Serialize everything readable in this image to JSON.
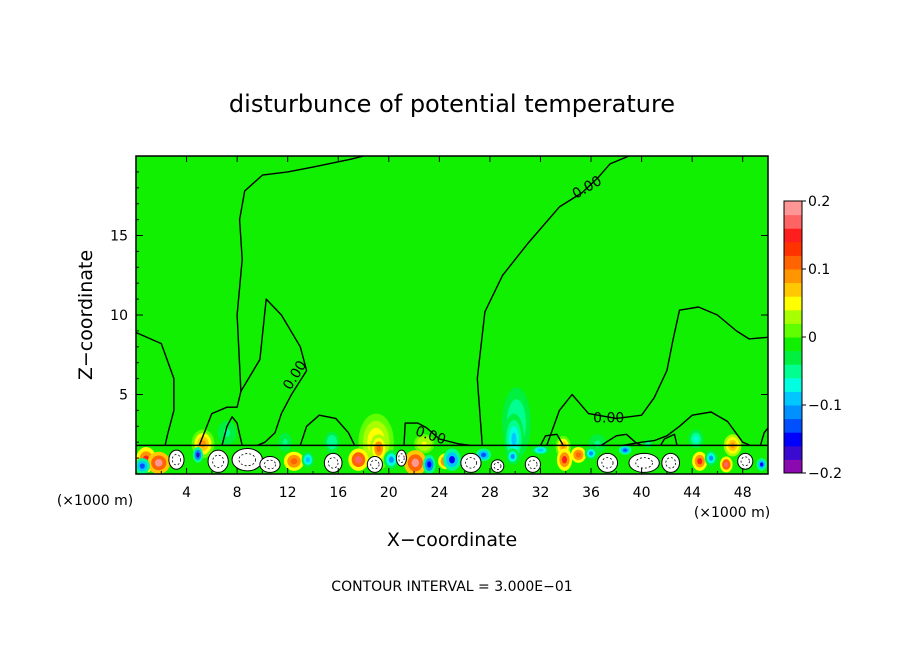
{
  "chart_data": {
    "type": "heatmap",
    "title": "disturbunce of potential temperature",
    "xlabel": "X−coordinate",
    "ylabel": "Z−coordinate",
    "x_unit_left": "(×1000 m)",
    "x_unit_right": "(×1000 m)",
    "footer": "CONTOUR INTERVAL = 3.000E−01",
    "xlim": [
      0,
      50
    ],
    "ylim": [
      0,
      20
    ],
    "x_ticks": [
      4,
      8,
      12,
      16,
      20,
      24,
      28,
      32,
      36,
      40,
      44,
      48
    ],
    "y_ticks": [
      5,
      10,
      15
    ],
    "grid": false,
    "background_value": 0,
    "colorbar": {
      "range": [
        -0.2,
        0.2
      ],
      "labels": [
        {
          "value": 0.2,
          "text": "0.2"
        },
        {
          "value": 0.1,
          "text": "0.1"
        },
        {
          "value": 0,
          "text": "0"
        },
        {
          "value": -0.1,
          "text": "−0.1"
        },
        {
          "value": -0.2,
          "text": "−0.2"
        }
      ],
      "colors": [
        "#8a0ab0",
        "#3a0ad0",
        "#0000ff",
        "#0050ff",
        "#0090ff",
        "#00c8ff",
        "#00ffe0",
        "#00ff90",
        "#00f040",
        "#10f000",
        "#60ff00",
        "#a8ff00",
        "#ffff00",
        "#ffc800",
        "#ff9600",
        "#ff6400",
        "#ff3200",
        "#ff1e1e",
        "#ff6464",
        "#ff9696"
      ]
    },
    "contour_labels": [
      {
        "x": 12.6,
        "z": 6.2,
        "text": "0.00",
        "angle": -58
      },
      {
        "x": 35.7,
        "z": 18.0,
        "text": "0.00",
        "angle": -30
      },
      {
        "x": 23.3,
        "z": 2.4,
        "text": "0.00",
        "angle": 18
      },
      {
        "x": 37.4,
        "z": 3.5,
        "text": "0.00",
        "angle": 0
      }
    ],
    "anomalies": [
      {
        "x": 30.1,
        "z": 3.2,
        "rx": 1.5,
        "rz": 3.0,
        "value": -0.06
      },
      {
        "x": 29.9,
        "z": 2.2,
        "rx": 0.8,
        "rz": 1.6,
        "value": -0.1
      },
      {
        "x": 19.0,
        "z": 2.0,
        "rx": 1.4,
        "rz": 1.8,
        "value": 0.07
      },
      {
        "x": 19.2,
        "z": 1.6,
        "rx": 0.7,
        "rz": 0.9,
        "value": 0.11
      },
      {
        "x": 7.2,
        "z": 2.6,
        "rx": 1.0,
        "rz": 1.0,
        "value": -0.05
      },
      {
        "x": 5.3,
        "z": 1.9,
        "rx": 0.9,
        "rz": 0.9,
        "value": 0.08
      },
      {
        "x": 15.5,
        "z": 2.0,
        "rx": 0.8,
        "rz": 0.9,
        "value": -0.06
      },
      {
        "x": 11.8,
        "z": 2.0,
        "rx": 0.7,
        "rz": 0.8,
        "value": -0.05
      },
      {
        "x": 44.3,
        "z": 2.2,
        "rx": 0.8,
        "rz": 0.8,
        "value": -0.07
      },
      {
        "x": 47.2,
        "z": 1.8,
        "rx": 0.7,
        "rz": 0.7,
        "value": 0.09
      },
      {
        "x": 36.5,
        "z": 1.9,
        "rx": 0.9,
        "rz": 0.8,
        "value": -0.05
      },
      {
        "x": 33.8,
        "z": 1.7,
        "rx": 0.6,
        "rz": 0.7,
        "value": 0.08
      },
      {
        "x": 22.8,
        "z": 1.9,
        "rx": 0.8,
        "rz": 0.6,
        "value": 0.05
      },
      {
        "x": 40.5,
        "z": 1.9,
        "rx": 0.7,
        "rz": 0.6,
        "value": -0.04
      }
    ],
    "contours": [
      [
        [
          0,
          8.9
        ],
        [
          2.0,
          8.2
        ],
        [
          3.0,
          6.0
        ],
        [
          3.0,
          4.0
        ],
        [
          2.5,
          2.5
        ],
        [
          2.3,
          1.8
        ]
      ],
      [
        [
          5.0,
          1.8
        ],
        [
          5.4,
          2.6
        ],
        [
          6.0,
          3.8
        ],
        [
          7.2,
          4.2
        ],
        [
          8.0,
          4.2
        ],
        [
          8.3,
          5.2
        ],
        [
          8.0,
          10.0
        ],
        [
          8.4,
          13.5
        ],
        [
          8.2,
          16.0
        ],
        [
          8.6,
          17.8
        ],
        [
          10.0,
          18.8
        ],
        [
          12.0,
          19.0
        ],
        [
          14.0,
          19.3
        ],
        [
          17.0,
          19.8
        ],
        [
          18.0,
          20.0
        ]
      ],
      [
        [
          39.0,
          20.0
        ],
        [
          37.5,
          19.5
        ],
        [
          36.5,
          18.6
        ],
        [
          35.3,
          17.7
        ],
        [
          33.5,
          16.8
        ],
        [
          31.0,
          14.5
        ],
        [
          29.0,
          12.5
        ],
        [
          27.6,
          10.2
        ],
        [
          27.0,
          6.0
        ],
        [
          27.3,
          2.8
        ],
        [
          27.4,
          1.8
        ]
      ],
      [
        [
          8.3,
          5.2
        ],
        [
          9.8,
          7.2
        ],
        [
          10.3,
          11.0
        ],
        [
          11.5,
          10.0
        ],
        [
          13.0,
          8.0
        ],
        [
          13.5,
          6.5
        ],
        [
          12.3,
          5.0
        ],
        [
          11.5,
          3.8
        ],
        [
          11.0,
          2.6
        ],
        [
          10.2,
          2.0
        ],
        [
          9.6,
          1.8
        ]
      ],
      [
        [
          13.0,
          1.8
        ],
        [
          13.5,
          3.0
        ],
        [
          14.5,
          3.7
        ],
        [
          15.8,
          3.5
        ],
        [
          16.8,
          2.6
        ],
        [
          17.3,
          1.8
        ]
      ],
      [
        [
          21.2,
          1.8
        ],
        [
          21.3,
          3.2
        ],
        [
          22.3,
          3.2
        ],
        [
          23.0,
          2.9
        ],
        [
          24.0,
          2.2
        ],
        [
          25.5,
          1.9
        ],
        [
          26.5,
          1.8
        ]
      ],
      [
        [
          6.8,
          1.8
        ],
        [
          7.2,
          3.0
        ],
        [
          7.6,
          3.6
        ],
        [
          8.0,
          3.2
        ],
        [
          8.2,
          2.5
        ],
        [
          8.4,
          1.8
        ]
      ],
      [
        [
          32.5,
          1.8
        ],
        [
          33.5,
          4.0
        ],
        [
          34.5,
          5.0
        ],
        [
          35.8,
          3.8
        ],
        [
          38.0,
          3.5
        ],
        [
          40.0,
          3.7
        ],
        [
          41.0,
          4.8
        ],
        [
          42.0,
          6.5
        ],
        [
          42.5,
          8.5
        ],
        [
          43.0,
          10.3
        ],
        [
          44.5,
          10.5
        ],
        [
          46.0,
          10.0
        ],
        [
          47.5,
          9.0
        ],
        [
          48.5,
          8.5
        ],
        [
          50.0,
          8.6
        ]
      ],
      [
        [
          38.5,
          1.8
        ],
        [
          40.0,
          2.0
        ],
        [
          41.0,
          2.1
        ],
        [
          42.0,
          2.4
        ],
        [
          43.0,
          3.0
        ],
        [
          44.0,
          3.7
        ],
        [
          45.5,
          3.9
        ],
        [
          46.8,
          3.3
        ],
        [
          48.0,
          2.0
        ],
        [
          48.6,
          1.8
        ]
      ],
      [
        [
          36.8,
          1.8
        ],
        [
          38.0,
          2.4
        ],
        [
          38.8,
          2.5
        ],
        [
          39.5,
          2.0
        ],
        [
          40.0,
          1.8
        ]
      ],
      [
        [
          32.0,
          1.8
        ],
        [
          32.4,
          2.4
        ],
        [
          33.3,
          2.5
        ],
        [
          33.8,
          1.8
        ]
      ],
      [
        [
          41.5,
          1.8
        ],
        [
          41.8,
          2.2
        ],
        [
          42.6,
          2.5
        ],
        [
          42.8,
          1.8
        ]
      ],
      [
        [
          49.4,
          1.8
        ],
        [
          49.7,
          2.6
        ],
        [
          50.0,
          2.9
        ]
      ]
    ],
    "surface_layer": {
      "z_top": 1.8,
      "warm_patches": [
        {
          "x": 0.8,
          "z": 0.9,
          "rx": 0.8,
          "rz": 0.8,
          "value": 0.15
        },
        {
          "x": 1.8,
          "z": 0.7,
          "rx": 0.9,
          "rz": 0.7,
          "value": 0.18
        },
        {
          "x": 12.5,
          "z": 0.8,
          "rx": 0.8,
          "rz": 0.6,
          "value": 0.12
        },
        {
          "x": 17.6,
          "z": 0.9,
          "rx": 0.8,
          "rz": 0.7,
          "value": 0.16
        },
        {
          "x": 22.1,
          "z": 0.7,
          "rx": 0.9,
          "rz": 0.8,
          "value": 0.18
        },
        {
          "x": 24.5,
          "z": 0.8,
          "rx": 0.6,
          "rz": 0.5,
          "value": 0.14
        },
        {
          "x": 33.9,
          "z": 0.9,
          "rx": 0.6,
          "rz": 0.7,
          "value": 0.15
        },
        {
          "x": 35.0,
          "z": 1.2,
          "rx": 0.6,
          "rz": 0.5,
          "value": 0.12
        },
        {
          "x": 44.6,
          "z": 0.8,
          "rx": 0.6,
          "rz": 0.6,
          "value": 0.15
        },
        {
          "x": 46.7,
          "z": 0.6,
          "rx": 0.5,
          "rz": 0.5,
          "value": 0.17
        }
      ],
      "cold_patches": [
        {
          "x": 0.5,
          "z": 0.5,
          "rx": 0.6,
          "rz": 0.5,
          "value": -0.14
        },
        {
          "x": 4.9,
          "z": 1.2,
          "rx": 0.4,
          "rz": 0.5,
          "value": -0.18
        },
        {
          "x": 13.6,
          "z": 0.9,
          "rx": 0.5,
          "rz": 0.5,
          "value": -0.1
        },
        {
          "x": 20.2,
          "z": 0.9,
          "rx": 0.6,
          "rz": 0.6,
          "value": -0.12
        },
        {
          "x": 23.2,
          "z": 0.6,
          "rx": 0.5,
          "rz": 0.6,
          "value": -0.16
        },
        {
          "x": 25.0,
          "z": 0.9,
          "rx": 0.7,
          "rz": 0.7,
          "value": -0.15
        },
        {
          "x": 27.5,
          "z": 1.2,
          "rx": 0.6,
          "rz": 0.4,
          "value": -0.14
        },
        {
          "x": 29.8,
          "z": 1.1,
          "rx": 0.5,
          "rz": 0.5,
          "value": -0.12
        },
        {
          "x": 32.0,
          "z": 1.5,
          "rx": 0.7,
          "rz": 0.3,
          "value": -0.1
        },
        {
          "x": 36.0,
          "z": 1.3,
          "rx": 0.5,
          "rz": 0.4,
          "value": -0.12
        },
        {
          "x": 38.7,
          "z": 1.5,
          "rx": 0.5,
          "rz": 0.3,
          "value": -0.14
        },
        {
          "x": 45.5,
          "z": 1.0,
          "rx": 0.5,
          "rz": 0.5,
          "value": -0.12
        },
        {
          "x": 49.5,
          "z": 0.6,
          "rx": 0.4,
          "rz": 0.4,
          "value": -0.15
        }
      ],
      "white_cells": [
        {
          "x": 3.2,
          "z": 0.9,
          "rx": 0.6,
          "rz": 0.6
        },
        {
          "x": 6.5,
          "z": 0.8,
          "rx": 0.8,
          "rz": 0.7
        },
        {
          "x": 8.8,
          "z": 0.9,
          "rx": 1.2,
          "rz": 0.7
        },
        {
          "x": 10.6,
          "z": 0.6,
          "rx": 0.8,
          "rz": 0.5
        },
        {
          "x": 15.6,
          "z": 0.7,
          "rx": 0.7,
          "rz": 0.6
        },
        {
          "x": 18.9,
          "z": 0.6,
          "rx": 0.6,
          "rz": 0.5
        },
        {
          "x": 21.0,
          "z": 1.0,
          "rx": 0.4,
          "rz": 0.5
        },
        {
          "x": 26.5,
          "z": 0.7,
          "rx": 0.8,
          "rz": 0.6
        },
        {
          "x": 28.6,
          "z": 0.5,
          "rx": 0.5,
          "rz": 0.4
        },
        {
          "x": 31.4,
          "z": 0.6,
          "rx": 0.6,
          "rz": 0.5
        },
        {
          "x": 37.3,
          "z": 0.7,
          "rx": 0.8,
          "rz": 0.6
        },
        {
          "x": 40.2,
          "z": 0.7,
          "rx": 1.2,
          "rz": 0.6
        },
        {
          "x": 42.3,
          "z": 0.7,
          "rx": 0.7,
          "rz": 0.6
        },
        {
          "x": 48.2,
          "z": 0.8,
          "rx": 0.6,
          "rz": 0.5
        }
      ]
    }
  }
}
